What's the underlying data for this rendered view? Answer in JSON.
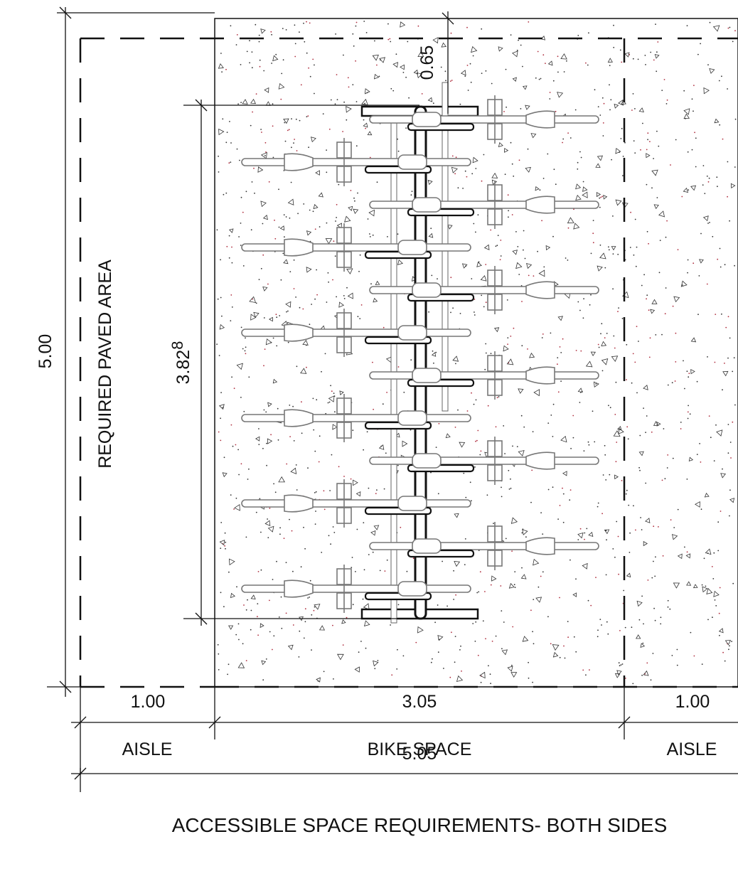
{
  "labels": {
    "paved_area": "REQUIRED PAVED AREA",
    "overall_depth": "5.00",
    "rack_length_main": "3.82",
    "rack_length_sup": "8",
    "top_offset": "0.65",
    "left_aisle_width": "1.00",
    "bike_space_width": "3.05",
    "right_aisle_width": "1.00",
    "left_aisle": "AISLE",
    "bike_space": "BIKE SPACE",
    "right_aisle": "AISLE",
    "overall_width": "5.05",
    "title": "ACCESSIBLE SPACE REQUIREMENTS- BOTH SIDES"
  },
  "bikes": {
    "left_count": 6,
    "right_count": 6
  }
}
